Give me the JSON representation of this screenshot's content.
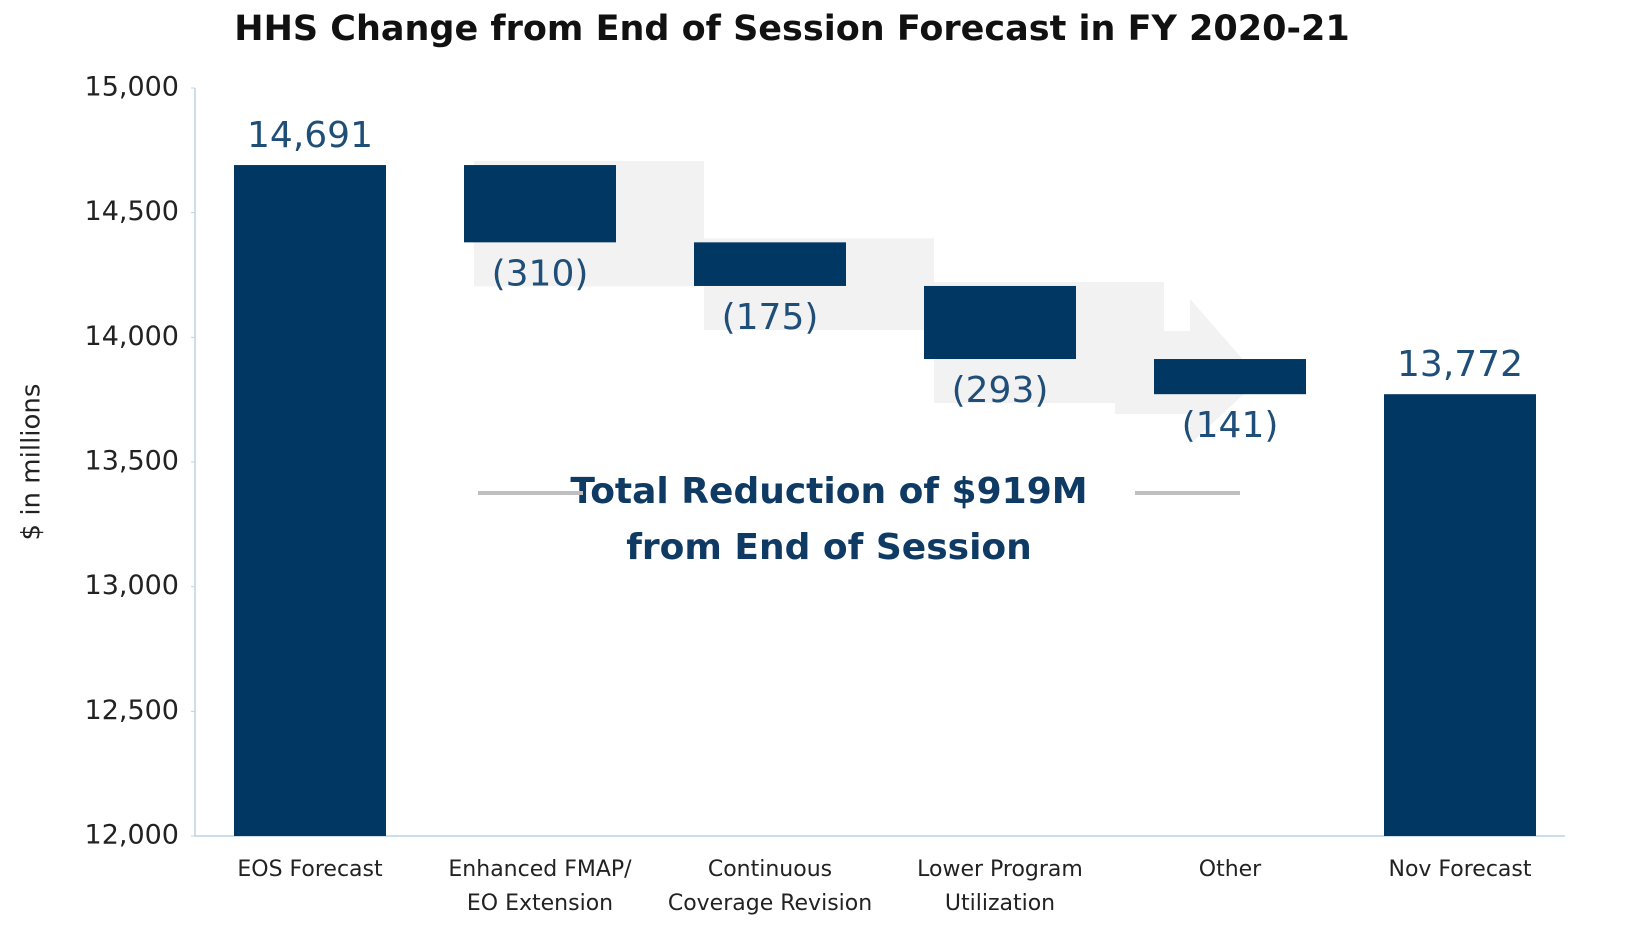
{
  "chart_data": {
    "type": "waterfall",
    "title": "HHS Change from End of Session Forecast in FY 2020-21",
    "y_label": "$ in millions",
    "categories": [
      [
        "EOS Forecast"
      ],
      [
        "Enhanced FMAP/",
        "EO Extension"
      ],
      [
        "Continuous",
        "Coverage Revision"
      ],
      [
        "Lower Program",
        "Utilization"
      ],
      [
        "Other"
      ],
      [
        "Nov Forecast"
      ]
    ],
    "measure": [
      "absolute",
      "relative",
      "relative",
      "relative",
      "relative",
      "total"
    ],
    "values": [
      14691,
      -310,
      -175,
      -293,
      -141,
      13772
    ],
    "value_labels": [
      "14,691",
      "(310)",
      "(175)",
      "(293)",
      "(141)",
      "13,772"
    ],
    "color": "#003763",
    "ylim": [
      12000,
      15000
    ],
    "yticks": [
      {
        "value": 12000,
        "label": "12,000"
      },
      {
        "value": 12500,
        "label": "12,500"
      },
      {
        "value": 13000,
        "label": "13,000"
      },
      {
        "value": 13500,
        "label": "13,500"
      },
      {
        "value": 14000,
        "label": "14,000"
      },
      {
        "value": 14500,
        "label": "14,500"
      },
      {
        "value": 15000,
        "label": "15,000"
      }
    ],
    "annotations": [
      "Total Reduction of $919M",
      "from End of Session"
    ]
  }
}
